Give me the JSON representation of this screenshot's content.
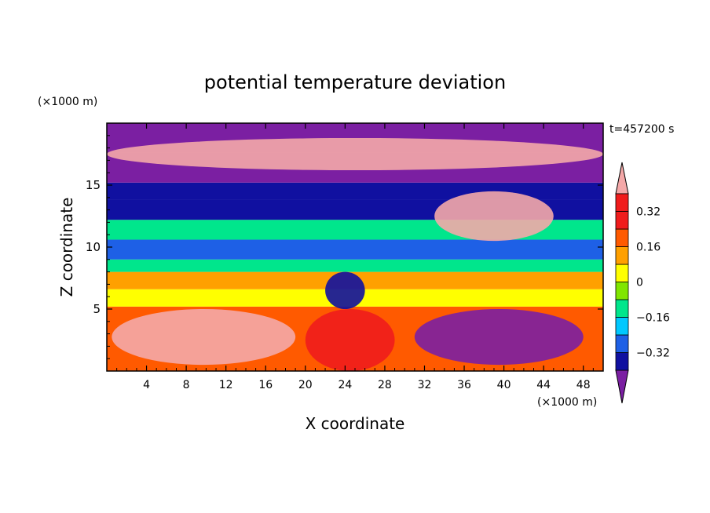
{
  "chart_data": {
    "type": "heatmap",
    "title": "potential temperature deviation",
    "xlabel": "X coordinate",
    "ylabel": "Z coordinate",
    "x_unit": "(×1000 m)",
    "y_unit": "(×1000 m)",
    "time_label": "t=457200 s",
    "xlim": [
      0,
      50
    ],
    "ylim": [
      0,
      20
    ],
    "x_ticks": [
      4,
      8,
      12,
      16,
      20,
      24,
      28,
      32,
      36,
      40,
      44,
      48
    ],
    "y_ticks": [
      5,
      10,
      15
    ],
    "colorbar": {
      "levels": [
        -0.4,
        -0.32,
        -0.24,
        -0.16,
        -0.08,
        0,
        0.08,
        0.16,
        0.24,
        0.32,
        0.4
      ],
      "tick_values": [
        0.32,
        0.16,
        0,
        -0.16,
        -0.32
      ],
      "tick_labels": [
        "0.32",
        "0.16",
        "0",
        "−0.16",
        "−0.32"
      ],
      "colors": [
        "#7b1fa2",
        "#1010a0",
        "#1e60e6",
        "#00c8ff",
        "#00e68c",
        "#80e600",
        "#ffff00",
        "#ffa000",
        "#ff5a00",
        "#f01c1c",
        "#f4a8a8"
      ],
      "extends": "both"
    },
    "bands": [
      {
        "z": [
          0,
          5.2
        ],
        "value": 0.2
      },
      {
        "z": [
          5.2,
          6.6
        ],
        "value": 0.05
      },
      {
        "z": [
          6.6,
          8.0
        ],
        "value": 0.1
      },
      {
        "z": [
          8.0,
          9.0
        ],
        "value": -0.1
      },
      {
        "z": [
          9.0,
          10.6
        ],
        "value": -0.28
      },
      {
        "z": [
          10.6,
          12.2
        ],
        "value": -0.12
      },
      {
        "z": [
          12.2,
          13.8
        ],
        "value": -0.34
      },
      {
        "z": [
          13.8,
          15.2
        ],
        "value": -0.38
      },
      {
        "z": [
          15.2,
          17.6
        ],
        "value": -0.42
      },
      {
        "z": [
          17.6,
          20
        ],
        "value": -0.42
      }
    ],
    "features": [
      {
        "desc": "upper positive plume",
        "x": [
          0,
          50
        ],
        "z": [
          16.2,
          18.8
        ],
        "value": 0.42
      },
      {
        "desc": "right upper positive region",
        "x": [
          33,
          45
        ],
        "z": [
          10.5,
          14.5
        ],
        "value": 0.42
      },
      {
        "desc": "right lower negative region",
        "x": [
          31,
          48
        ],
        "z": [
          0.5,
          5
        ],
        "value": -0.42
      },
      {
        "desc": "left lower positive region",
        "x": [
          0.5,
          19
        ],
        "z": [
          0.5,
          5
        ],
        "value": 0.42
      },
      {
        "desc": "central warm column",
        "x": [
          20,
          29
        ],
        "z": [
          0,
          5
        ],
        "value": 0.3
      },
      {
        "desc": "central cold wedge",
        "x": [
          22,
          26
        ],
        "z": [
          5,
          8
        ],
        "value": -0.34
      }
    ]
  }
}
